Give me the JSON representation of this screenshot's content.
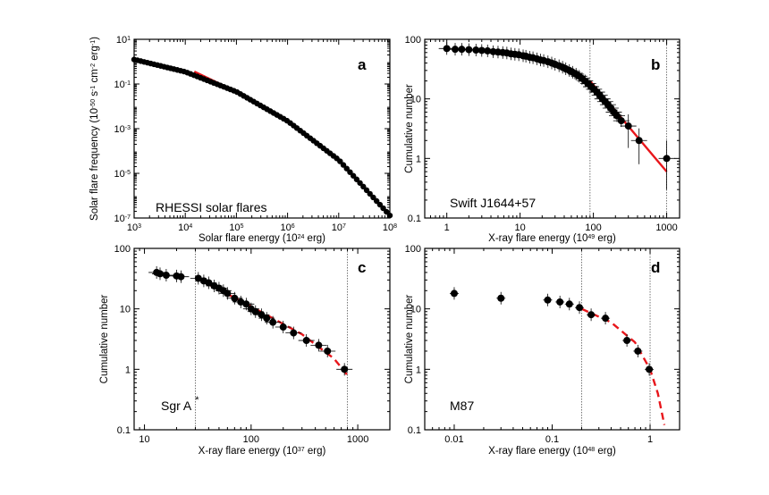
{
  "colors": {
    "fit": "#e8161b",
    "points": "#000000",
    "background": "#ffffff"
  },
  "chart_data": [
    {
      "id": "a",
      "type": "scatter",
      "panel_letter": "a",
      "panel_name": "RHESSI solar flares",
      "xlabel_parts": [
        "Solar flare energy (10",
        "24",
        " erg)"
      ],
      "ylabel_parts": [
        "Solar flare frequency (10",
        "-50",
        " s",
        "-1",
        " cm",
        "-2",
        " erg",
        "-1",
        ")"
      ],
      "xscale": "log",
      "yscale": "log",
      "xlim": [
        1000,
        100000000
      ],
      "ylim": [
        1e-07,
        10
      ],
      "xticks": [
        {
          "v": 1000,
          "b": "10",
          "e": "3"
        },
        {
          "v": 10000,
          "b": "10",
          "e": "4"
        },
        {
          "v": 100000,
          "b": "10",
          "e": "5"
        },
        {
          "v": 1000000,
          "b": "10",
          "e": "6"
        },
        {
          "v": 10000000,
          "b": "10",
          "e": "7"
        },
        {
          "v": 100000000,
          "b": "10",
          "e": "8"
        }
      ],
      "yticks": [
        {
          "v": 1e-07,
          "b": "10",
          "e": "-7"
        },
        {
          "v": 1e-05,
          "b": "10",
          "e": "-5"
        },
        {
          "v": 0.001,
          "b": "10",
          "e": "-3"
        },
        {
          "v": 0.1,
          "b": "10",
          "e": "-1"
        },
        {
          "v": 10,
          "b": "10",
          "e": "1"
        }
      ],
      "points_generator": {
        "x_from": 1000,
        "x_to": 100000000,
        "count": 78,
        "curve": [
          [
            1000,
            1.25
          ],
          [
            10000,
            0.35
          ],
          [
            100000,
            0.045
          ],
          [
            1000000,
            0.0022
          ],
          [
            10000000,
            4e-05
          ],
          [
            100000000,
            1.3e-07
          ]
        ]
      },
      "fit": {
        "style": "solid",
        "points": [
          [
            15000,
            0.36
          ],
          [
            100000,
            0.045
          ],
          [
            1000000,
            0.0022
          ],
          [
            10000000,
            4e-05
          ],
          [
            100000000,
            1.3e-07
          ]
        ]
      }
    },
    {
      "id": "b",
      "type": "scatter",
      "panel_letter": "b",
      "panel_name": "Swift J1644+57",
      "xlabel_parts": [
        "X-ray flare energy (10",
        "49",
        " erg)"
      ],
      "ylabel_parts": [
        "Cumulative number"
      ],
      "xscale": "log",
      "yscale": "log",
      "xlim": [
        0.5,
        1500
      ],
      "ylim": [
        0.1,
        100
      ],
      "xticks": [
        {
          "v": 1,
          "t": "1"
        },
        {
          "v": 10,
          "t": "10"
        },
        {
          "v": 100,
          "t": "100"
        },
        {
          "v": 1000,
          "t": "1000"
        }
      ],
      "yticks": [
        {
          "v": 0.1,
          "t": "0.1"
        },
        {
          "v": 1,
          "t": "1"
        },
        {
          "v": 10,
          "t": "10"
        },
        {
          "v": 100,
          "t": "100"
        }
      ],
      "vlines": [
        90,
        1000
      ],
      "points": [
        {
          "x": 1.0,
          "y": 70,
          "xerr": 0.25
        },
        {
          "x": 1.3,
          "y": 68
        },
        {
          "x": 1.6,
          "y": 68
        },
        {
          "x": 2.0,
          "y": 67
        },
        {
          "x": 2.5,
          "y": 66
        },
        {
          "x": 3.0,
          "y": 65
        },
        {
          "x": 3.6,
          "y": 64
        },
        {
          "x": 4.3,
          "y": 62
        },
        {
          "x": 5.0,
          "y": 61
        },
        {
          "x": 5.8,
          "y": 60
        },
        {
          "x": 6.6,
          "y": 59
        },
        {
          "x": 7.5,
          "y": 57
        },
        {
          "x": 8.5,
          "y": 56
        },
        {
          "x": 9.6,
          "y": 55
        },
        {
          "x": 11,
          "y": 53
        },
        {
          "x": 12,
          "y": 52
        },
        {
          "x": 13.5,
          "y": 50
        },
        {
          "x": 15,
          "y": 49
        },
        {
          "x": 17,
          "y": 47
        },
        {
          "x": 19,
          "y": 45
        },
        {
          "x": 21,
          "y": 44
        },
        {
          "x": 24,
          "y": 42
        },
        {
          "x": 27,
          "y": 40
        },
        {
          "x": 30,
          "y": 38
        },
        {
          "x": 34,
          "y": 36
        },
        {
          "x": 38,
          "y": 34
        },
        {
          "x": 42,
          "y": 32
        },
        {
          "x": 47,
          "y": 30
        },
        {
          "x": 52,
          "y": 28
        },
        {
          "x": 58,
          "y": 26
        },
        {
          "x": 64,
          "y": 24
        },
        {
          "x": 70,
          "y": 22
        },
        {
          "x": 77,
          "y": 20
        },
        {
          "x": 85,
          "y": 18
        },
        {
          "x": 93,
          "y": 16
        },
        {
          "x": 102,
          "y": 14.5
        },
        {
          "x": 112,
          "y": 13
        },
        {
          "x": 122,
          "y": 11.5
        },
        {
          "x": 133,
          "y": 10
        },
        {
          "x": 145,
          "y": 9
        },
        {
          "x": 158,
          "y": 8
        },
        {
          "x": 172,
          "y": 7
        },
        {
          "x": 190,
          "y": 6
        },
        {
          "x": 210,
          "y": 5.2
        },
        {
          "x": 240,
          "y": 4.3
        },
        {
          "x": 300,
          "y": 3.5,
          "yerr": 2
        },
        {
          "x": 420,
          "y": 2.0,
          "yerr": 1.2
        },
        {
          "x": 1000,
          "y": 1.0,
          "yerr_lo": 0.7,
          "yerr_hi": 1.0
        }
      ],
      "fit": {
        "style": "solid",
        "points": [
          [
            90,
            20
          ],
          [
            1000,
            0.6
          ]
        ]
      }
    },
    {
      "id": "c",
      "type": "scatter",
      "panel_letter": "c",
      "panel_name": "Sgr A",
      "panel_name_sup": "*",
      "xlabel_parts": [
        "X-ray flare energy (10",
        "37",
        " erg)"
      ],
      "ylabel_parts": [
        "Cumulative number"
      ],
      "xscale": "log",
      "yscale": "log",
      "xlim": [
        8,
        2000
      ],
      "ylim": [
        0.1,
        100
      ],
      "xticks": [
        {
          "v": 10,
          "t": "10"
        },
        {
          "v": 100,
          "t": "100"
        },
        {
          "v": 1000,
          "t": "1000"
        }
      ],
      "yticks": [
        {
          "v": 0.1,
          "t": "0.1"
        },
        {
          "v": 1,
          "t": "1"
        },
        {
          "v": 10,
          "t": "10"
        },
        {
          "v": 100,
          "t": "100"
        }
      ],
      "vlines": [
        30,
        800
      ],
      "points": [
        {
          "x": 13,
          "y": 40
        },
        {
          "x": 14,
          "y": 38
        },
        {
          "x": 16,
          "y": 36
        },
        {
          "x": 20,
          "y": 35
        },
        {
          "x": 22,
          "y": 34
        },
        {
          "x": 32,
          "y": 32
        },
        {
          "x": 36,
          "y": 29
        },
        {
          "x": 40,
          "y": 27
        },
        {
          "x": 45,
          "y": 24
        },
        {
          "x": 50,
          "y": 22
        },
        {
          "x": 55,
          "y": 20
        },
        {
          "x": 60,
          "y": 18
        },
        {
          "x": 70,
          "y": 15
        },
        {
          "x": 80,
          "y": 13
        },
        {
          "x": 90,
          "y": 12
        },
        {
          "x": 100,
          "y": 10
        },
        {
          "x": 110,
          "y": 9
        },
        {
          "x": 125,
          "y": 8
        },
        {
          "x": 140,
          "y": 7
        },
        {
          "x": 160,
          "y": 6
        },
        {
          "x": 200,
          "y": 5
        },
        {
          "x": 250,
          "y": 4
        },
        {
          "x": 330,
          "y": 3
        },
        {
          "x": 430,
          "y": 2.5
        },
        {
          "x": 520,
          "y": 2
        },
        {
          "x": 750,
          "y": 1
        }
      ],
      "fit": {
        "style": "dashed",
        "points": [
          [
            30,
            33
          ],
          [
            100,
            11
          ],
          [
            300,
            3.8
          ],
          [
            600,
            1.5
          ],
          [
            800,
            0.8
          ]
        ]
      }
    },
    {
      "id": "d",
      "type": "scatter",
      "panel_letter": "d",
      "panel_name": "M87",
      "xlabel_parts": [
        "X-ray flare energy (10",
        "48",
        " erg)"
      ],
      "ylabel_parts": [
        "Cumulative number"
      ],
      "xscale": "log",
      "yscale": "log",
      "xlim": [
        0.005,
        2
      ],
      "ylim": [
        0.1,
        100
      ],
      "xticks": [
        {
          "v": 0.01,
          "t": "0.01"
        },
        {
          "v": 0.1,
          "t": "0.1"
        },
        {
          "v": 1,
          "t": "1"
        }
      ],
      "yticks": [
        {
          "v": 0.1,
          "t": "0.1"
        },
        {
          "v": 1,
          "t": "1"
        },
        {
          "v": 10,
          "t": "10"
        },
        {
          "v": 100,
          "t": "100"
        }
      ],
      "vlines": [
        0.2,
        1.0
      ],
      "points": [
        {
          "x": 0.01,
          "y": 18
        },
        {
          "x": 0.03,
          "y": 15
        },
        {
          "x": 0.09,
          "y": 14
        },
        {
          "x": 0.12,
          "y": 13
        },
        {
          "x": 0.15,
          "y": 12
        },
        {
          "x": 0.19,
          "y": 10.5
        },
        {
          "x": 0.25,
          "y": 8
        },
        {
          "x": 0.35,
          "y": 7
        },
        {
          "x": 0.58,
          "y": 3
        },
        {
          "x": 0.75,
          "y": 2
        },
        {
          "x": 0.98,
          "y": 1
        }
      ],
      "fit": {
        "style": "dashed",
        "points": [
          [
            0.2,
            10
          ],
          [
            0.4,
            6
          ],
          [
            0.7,
            2.8
          ],
          [
            1.0,
            1.0
          ],
          [
            1.2,
            0.4
          ],
          [
            1.4,
            0.12
          ]
        ]
      }
    }
  ]
}
